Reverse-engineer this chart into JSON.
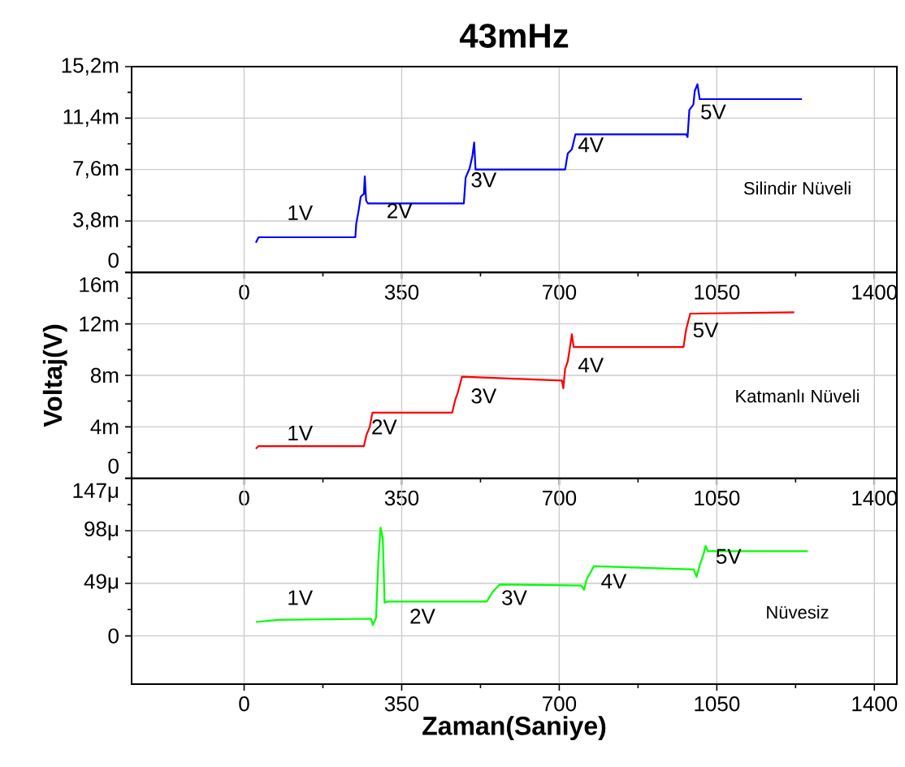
{
  "chart_data": [
    {
      "type": "line",
      "title": "43mHz",
      "xlim": [
        -250,
        1450
      ],
      "ylim": [
        0,
        15.2
      ],
      "xticks": [
        0,
        350,
        700,
        1050,
        1400
      ],
      "yticks": [
        0,
        {
          "value": 3.8,
          "label": "3,8m"
        },
        {
          "value": 7.6,
          "label": "7,6m"
        },
        {
          "value": 11.4,
          "label": "11,4m"
        },
        {
          "value": 15.2,
          "label": "15,2m"
        }
      ],
      "grid": true,
      "x": [
        26,
        32,
        247,
        249,
        254,
        259,
        266,
        268,
        271,
        275,
        488,
        492,
        501,
        507,
        511,
        514,
        713,
        719,
        728,
        736,
        982,
        985,
        989,
        998,
        1001,
        1007,
        1012,
        1239
      ],
      "series": [
        {
          "color": "#0000ff",
          "values": [
            2.2,
            2.6,
            2.6,
            3.6,
            4.5,
            5.6,
            5.8,
            7.1,
            5.3,
            5.1,
            5.1,
            7.0,
            7.7,
            8.6,
            9.6,
            7.6,
            7.6,
            8.8,
            9.1,
            10.2,
            10.2,
            10.0,
            12.0,
            12.4,
            13.4,
            13.9,
            12.8,
            12.8
          ]
        }
      ],
      "annotations": [
        "1V",
        "2V",
        "3V",
        "4V",
        "5V",
        "Silindir Nüveli"
      ]
    },
    {
      "type": "line",
      "ylabel": "Voltaj(V)",
      "xlim": [
        -250,
        1450
      ],
      "ylim": [
        0,
        16
      ],
      "xticks": [
        0,
        350,
        700,
        1050,
        1400
      ],
      "yticks": [
        0,
        {
          "value": 4,
          "label": "4m"
        },
        {
          "value": 8,
          "label": "8m"
        },
        {
          "value": 12,
          "label": "12m"
        },
        {
          "value": 16,
          "label": "16m"
        }
      ],
      "grid": true,
      "x": [
        26,
        32,
        266,
        272,
        279,
        285,
        462,
        469,
        475,
        484,
        706,
        709,
        713,
        719,
        728,
        732,
        976,
        982,
        991,
        1222
      ],
      "series": [
        {
          "color": "#ff0000",
          "values": [
            2.3,
            2.5,
            2.5,
            3.4,
            4.0,
            5.1,
            5.1,
            6.1,
            6.7,
            7.9,
            7.6,
            7.0,
            8.5,
            9.1,
            11.2,
            10.2,
            10.2,
            11.6,
            12.8,
            12.9
          ]
        }
      ],
      "annotations": [
        "1V",
        "2V",
        "3V",
        "4V",
        "5V",
        "Katmanlı Nüveli"
      ]
    },
    {
      "type": "line",
      "xlabel": "Zaman(Saniye)",
      "xlim": [
        -250,
        1450
      ],
      "ylim": [
        -45,
        147
      ],
      "xticks": [
        0,
        350,
        700,
        1050,
        1400
      ],
      "yticks": [
        0,
        {
          "value": 49,
          "label": "49μ"
        },
        {
          "value": 98,
          "label": "98μ"
        },
        {
          "value": 147,
          "label": "147μ"
        }
      ],
      "grid": true,
      "x": [
        26,
        77,
        282,
        286,
        293,
        298,
        303,
        308,
        312,
        318,
        539,
        552,
        568,
        749,
        755,
        761,
        777,
        999,
        1005,
        1012,
        1021,
        1025,
        1030,
        1252
      ],
      "series": [
        {
          "color": "#00ff00",
          "values": [
            13,
            15,
            16,
            10,
            17,
            69,
            101,
            91,
            31,
            32,
            32,
            41,
            48,
            47,
            43,
            53,
            65,
            62,
            55,
            66,
            77,
            84,
            79,
            79
          ]
        }
      ],
      "annotations": [
        "1V",
        "2V",
        "3V",
        "4V",
        "5V",
        "Nüvesiz"
      ]
    }
  ]
}
